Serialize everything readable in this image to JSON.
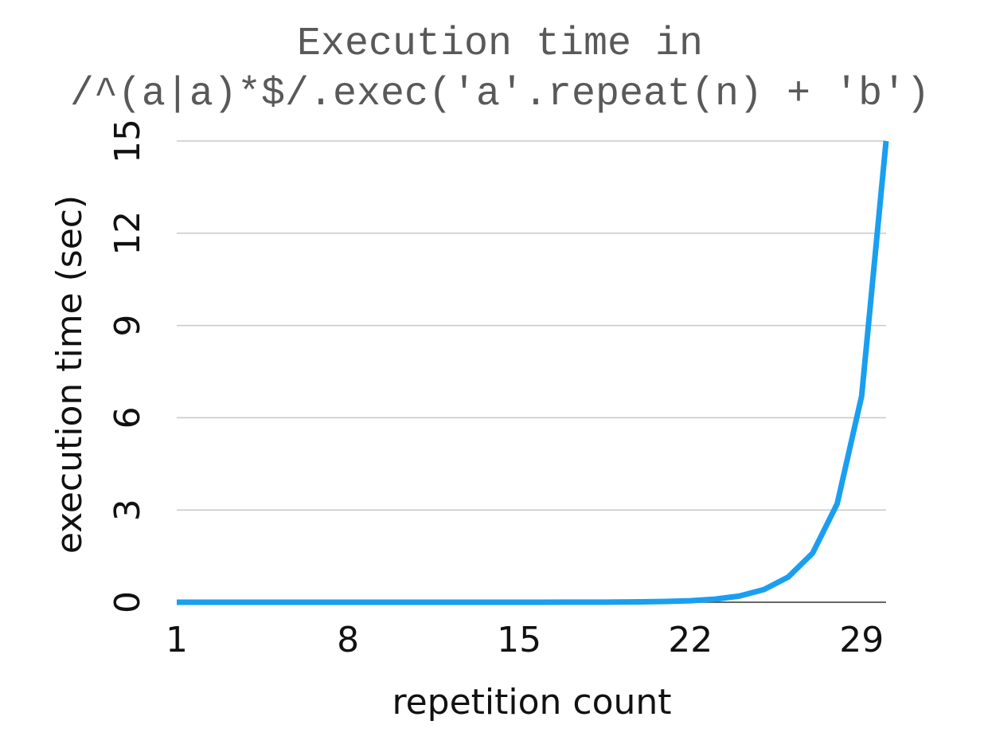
{
  "chart_data": {
    "type": "line",
    "title": [
      "Execution time in",
      "/^(a|a)*$/.exec('a'.repeat(n) + 'b')"
    ],
    "x_label": "repetition count",
    "y_label": "execution time (sec)",
    "x": [
      1,
      2,
      3,
      4,
      5,
      6,
      7,
      8,
      9,
      10,
      11,
      12,
      13,
      14,
      15,
      16,
      17,
      18,
      19,
      20,
      21,
      22,
      23,
      24,
      25,
      26,
      27,
      28,
      29,
      30
    ],
    "series": [
      {
        "name": "execution time",
        "color": "#1a9ff0",
        "values": [
          0,
          0,
          0,
          0,
          0,
          0,
          0,
          0,
          0,
          0,
          0,
          0,
          0,
          0,
          0,
          0.001,
          0.002,
          0.003,
          0.006,
          0.013,
          0.025,
          0.05,
          0.1,
          0.2,
          0.41,
          0.82,
          1.6,
          3.2,
          6.7,
          15.0
        ]
      }
    ],
    "xlim": [
      1,
      30
    ],
    "xticks": [
      1,
      8,
      15,
      22,
      29
    ],
    "ylim": [
      0,
      15
    ],
    "yticks": [
      0,
      3,
      6,
      9,
      12,
      15
    ],
    "grid": true
  }
}
